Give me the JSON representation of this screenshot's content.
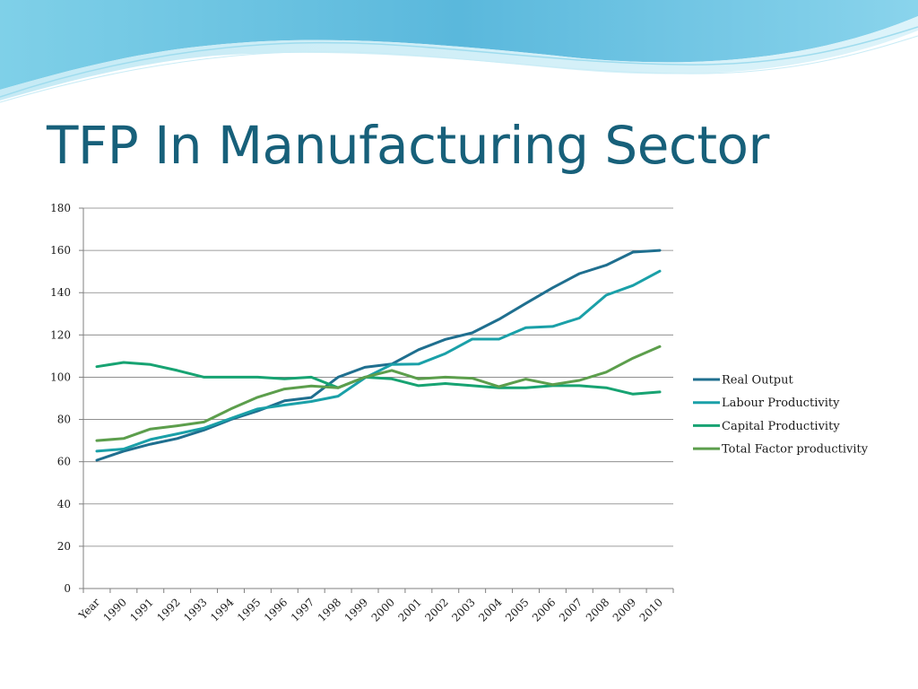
{
  "slide": {
    "title": "TFP In Manufacturing Sector"
  },
  "chart_data": {
    "type": "line",
    "title": "",
    "xlabel": "",
    "ylabel": "",
    "ylim": [
      0,
      180
    ],
    "yticks": [
      0,
      20,
      40,
      60,
      80,
      100,
      120,
      140,
      160,
      180
    ],
    "grid": "horizontal",
    "legend_position": "right",
    "categories": [
      "Year",
      "1990",
      "1991",
      "1992",
      "1993",
      "1994",
      "1995",
      "1996",
      "1997",
      "1998",
      "1999",
      "2000",
      "2001",
      "2002",
      "2003",
      "2004",
      "2005",
      "2006",
      "2007",
      "2008",
      "2009",
      "2010"
    ],
    "series": [
      {
        "name": "Real Output",
        "color": "#1f6f8f",
        "values": [
          60.7,
          65,
          68.3,
          71,
          75,
          80,
          84,
          88.8,
          90.4,
          100,
          104.7,
          106.2,
          113,
          117.9,
          121,
          127.4,
          134.9,
          142.3,
          149,
          153,
          159.2,
          160
        ]
      },
      {
        "name": "Labour Productivity",
        "color": "#1aa0a8",
        "values": [
          65,
          66,
          70.5,
          73.2,
          75.9,
          80.5,
          85,
          86.8,
          88.5,
          91,
          99.7,
          106,
          106.2,
          111.2,
          118,
          118,
          123.4,
          124,
          128,
          138.8,
          143.4,
          150.2
        ]
      },
      {
        "name": "Capital Productivity",
        "color": "#17a372",
        "values": [
          105,
          107,
          106,
          103.2,
          100,
          100,
          100,
          99.2,
          100,
          95,
          100,
          99.2,
          96,
          97,
          96,
          95,
          95,
          96,
          96,
          95,
          92,
          93
        ]
      },
      {
        "name": "Total Factor productivity",
        "color": "#5c9e4c",
        "values": [
          70,
          71,
          75.5,
          77,
          78.8,
          85,
          90.5,
          94.4,
          95.8,
          95,
          100,
          103.2,
          99.2,
          100,
          99.5,
          95.5,
          99.1,
          96.5,
          98.5,
          102.4,
          109,
          114.5
        ]
      }
    ]
  }
}
